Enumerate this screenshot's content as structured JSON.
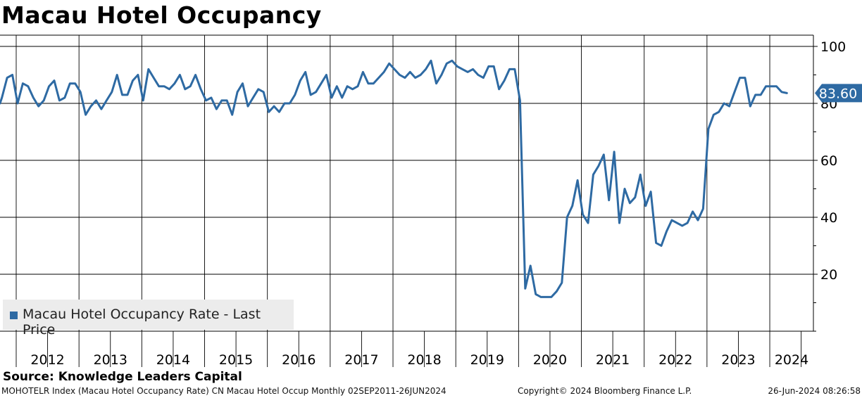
{
  "chart_data": {
    "type": "line",
    "title": "Macau Hotel Occupancy",
    "series": [
      {
        "name": "Macau Hotel Occupancy Rate - Last Price",
        "color": "#2e6aa3",
        "start": "2011-09",
        "frequency": "monthly",
        "values": [
          80,
          82,
          89,
          90,
          80,
          87,
          86,
          82,
          79,
          81,
          86,
          88,
          81,
          82,
          87,
          87,
          84,
          76,
          79,
          81,
          78,
          81,
          84,
          90,
          83,
          83,
          88,
          90,
          81,
          92,
          89,
          86,
          86,
          85,
          87,
          90,
          85,
          86,
          90,
          85,
          81,
          82,
          78,
          81,
          81,
          76,
          84,
          87,
          79,
          82,
          85,
          84,
          77,
          79,
          77,
          80,
          80,
          83,
          88,
          91,
          83,
          84,
          87,
          90,
          82,
          86,
          82,
          86,
          85,
          86,
          91,
          87,
          87,
          89,
          91,
          94,
          92,
          90,
          89,
          91,
          89,
          90,
          92,
          95,
          87,
          90,
          94,
          95,
          93,
          92,
          91,
          92,
          90,
          89,
          93,
          93,
          85,
          88,
          92,
          92,
          81,
          15,
          23,
          13,
          12,
          12,
          12,
          14,
          17,
          40,
          44,
          53,
          41,
          38,
          55,
          58,
          62,
          46,
          63,
          38,
          50,
          45,
          47,
          55,
          44,
          49,
          31,
          30,
          35,
          39,
          38,
          37,
          38,
          42,
          39,
          43,
          71,
          76,
          77,
          80,
          79,
          84,
          89,
          89,
          79,
          83,
          83,
          86,
          86,
          86,
          84,
          83.6
        ]
      }
    ],
    "x_years": [
      "2012",
      "2013",
      "2014",
      "2015",
      "2016",
      "2017",
      "2018",
      "2019",
      "2020",
      "2021",
      "2022",
      "2023",
      "2024"
    ],
    "y_ticks": [
      20,
      40,
      60,
      80,
      100
    ],
    "ylim": [
      0,
      104
    ],
    "last_value_label": "83.60",
    "grid": true,
    "legend_position": "bottom-left"
  },
  "legend": {
    "label": "Macau Hotel Occupancy Rate - Last Price"
  },
  "source": "Source: Knowledge Leaders Capital",
  "footer": {
    "left": "MOHOTELR Index (Macau Hotel Occupancy Rate) CN Macau Hotel Occup  Monthly 02SEP2011-26JUN2024",
    "middle": "Copyright© 2024 Bloomberg Finance L.P.",
    "right": "26-Jun-2024 08:26:58"
  }
}
